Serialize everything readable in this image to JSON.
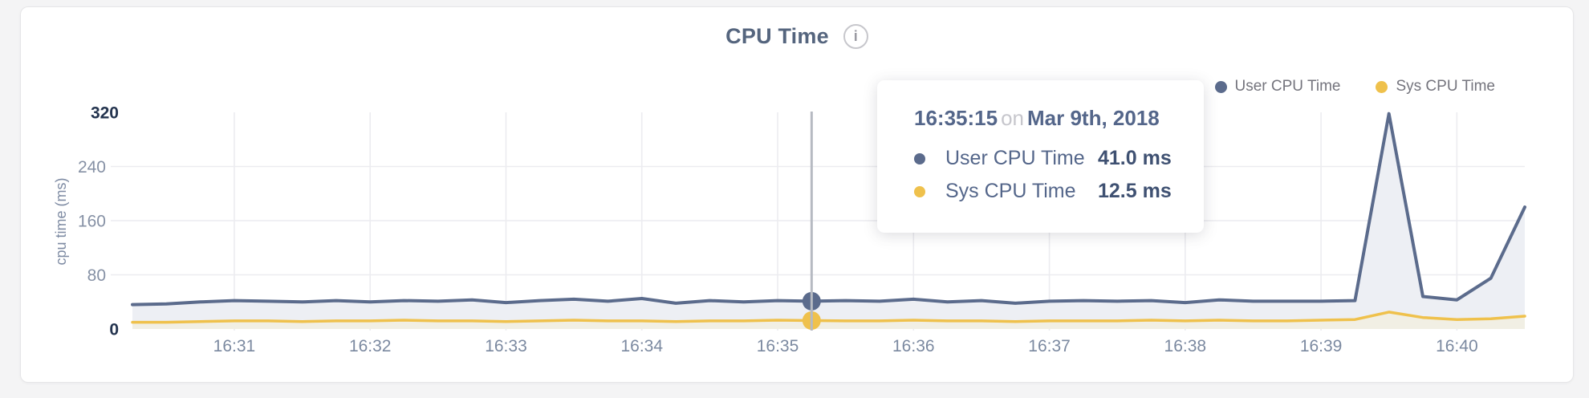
{
  "header": {
    "title": "CPU Time",
    "info_glyph": "i"
  },
  "legend": {
    "items": [
      {
        "label": "User CPU Time",
        "color": "#5b6b8c"
      },
      {
        "label": "Sys CPU Time",
        "color": "#efc14c"
      }
    ]
  },
  "tooltip": {
    "time": "16:35:15",
    "conjunction": "on",
    "date": "Mar 9th, 2018",
    "rows": [
      {
        "label": "User CPU Time",
        "value": "41.0 ms",
        "color": "#5b6b8c"
      },
      {
        "label": "Sys CPU Time",
        "value": "12.5 ms",
        "color": "#efc14c"
      }
    ]
  },
  "colors": {
    "grid": "#ececf0",
    "highlight_line": "#b6bac2",
    "ytick_major": "#24344f",
    "ytick_minor": "#8691a5",
    "xtick": "#7b89a0",
    "axis_title": "#7e8ba3"
  },
  "chart_data": {
    "type": "line",
    "title": "CPU Time",
    "xlabel": "",
    "ylabel": "cpu time (ms)",
    "ylim": [
      0,
      320
    ],
    "yticks": [
      0,
      80,
      160,
      240,
      320
    ],
    "grid_yticks": [
      80,
      160,
      240
    ],
    "xticks": [
      "16:31",
      "16:32",
      "16:33",
      "16:34",
      "16:35",
      "16:36",
      "16:37",
      "16:38",
      "16:39",
      "16:40"
    ],
    "grid": true,
    "legend_position": "top-right",
    "time_step_seconds": 15,
    "times": [
      "16:30:15",
      "16:30:30",
      "16:30:45",
      "16:31:00",
      "16:31:15",
      "16:31:30",
      "16:31:45",
      "16:32:00",
      "16:32:15",
      "16:32:30",
      "16:32:45",
      "16:33:00",
      "16:33:15",
      "16:33:30",
      "16:33:45",
      "16:34:00",
      "16:34:15",
      "16:34:30",
      "16:34:45",
      "16:35:00",
      "16:35:15",
      "16:35:30",
      "16:35:45",
      "16:36:00",
      "16:36:15",
      "16:36:30",
      "16:36:45",
      "16:37:00",
      "16:37:15",
      "16:37:30",
      "16:37:45",
      "16:38:00",
      "16:38:15",
      "16:38:30",
      "16:38:45",
      "16:39:00",
      "16:39:15",
      "16:39:30",
      "16:39:45",
      "16:40:00",
      "16:40:15",
      "16:40:30"
    ],
    "series": [
      {
        "name": "User CPU Time",
        "unit": "ms",
        "color": "#5b6b8c",
        "fill": "#edeff4",
        "values": [
          36,
          37,
          40,
          42,
          41,
          40,
          42,
          40,
          42,
          41,
          43,
          39,
          42,
          44,
          41,
          45,
          38,
          42,
          40,
          42,
          41,
          42,
          41,
          44,
          40,
          42,
          38,
          41,
          42,
          41,
          42,
          39,
          43,
          41,
          41,
          41,
          42,
          318,
          48,
          43,
          75,
          180
        ]
      },
      {
        "name": "Sys CPU Time",
        "unit": "ms",
        "color": "#efc14c",
        "fill": "#f1efe4",
        "values": [
          10,
          10,
          11,
          12,
          12,
          11,
          12,
          12,
          13,
          12,
          12,
          11,
          12,
          13,
          12,
          12,
          11,
          12,
          12,
          13,
          12.5,
          12,
          12,
          13,
          12,
          12,
          11,
          12,
          12,
          12,
          13,
          12,
          13,
          12,
          12,
          13,
          14,
          25,
          17,
          14,
          15,
          19
        ]
      }
    ],
    "highlight": {
      "time": "16:35:15",
      "date": "Mar 9th, 2018",
      "index": 20,
      "values": {
        "user_cpu_ms": 41.0,
        "sys_cpu_ms": 12.5
      }
    }
  }
}
